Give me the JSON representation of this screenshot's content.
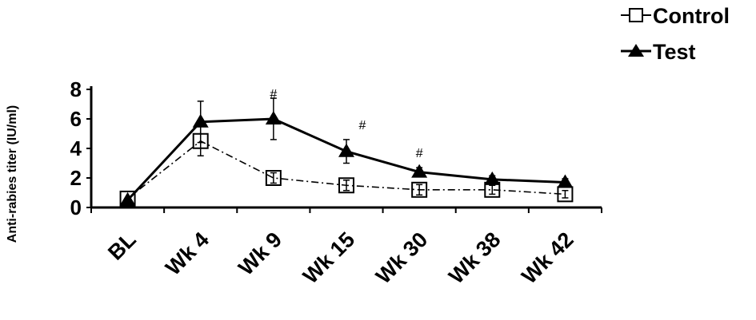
{
  "chart_data": {
    "type": "line",
    "title": "",
    "xlabel": "",
    "ylabel": "Anti-rabies titer (IU/ml)",
    "categories": [
      "BL",
      "Wk 4",
      "Wk 9",
      "Wk 15",
      "Wk 30",
      "Wk 38",
      "Wk 42"
    ],
    "ylim": [
      0,
      8
    ],
    "yticks": [
      "0",
      "2",
      "4",
      "6",
      "8"
    ],
    "grid": false,
    "legend_position": "top-right",
    "series": [
      {
        "name": "Control",
        "marker": "open-square",
        "line_style": "dash-dot",
        "values": [
          0.6,
          4.5,
          2.0,
          1.5,
          1.2,
          1.2,
          0.9
        ],
        "error": [
          0.0,
          1.0,
          0.35,
          0.35,
          0.35,
          0.3,
          0.25
        ]
      },
      {
        "name": "Test",
        "marker": "filled-triangle",
        "line_style": "solid",
        "values": [
          0.5,
          5.8,
          6.0,
          3.8,
          2.4,
          1.9,
          1.7
        ],
        "error": [
          0.0,
          1.4,
          1.4,
          0.8,
          0.3,
          0.25,
          0.25
        ]
      }
    ],
    "annotations": [
      {
        "text": "#",
        "category": "Wk 9",
        "y": 7.4
      },
      {
        "text": "#",
        "category": "Wk 15",
        "y": 5.3
      },
      {
        "text": "#",
        "category": "Wk 30",
        "y": 3.4
      }
    ]
  }
}
